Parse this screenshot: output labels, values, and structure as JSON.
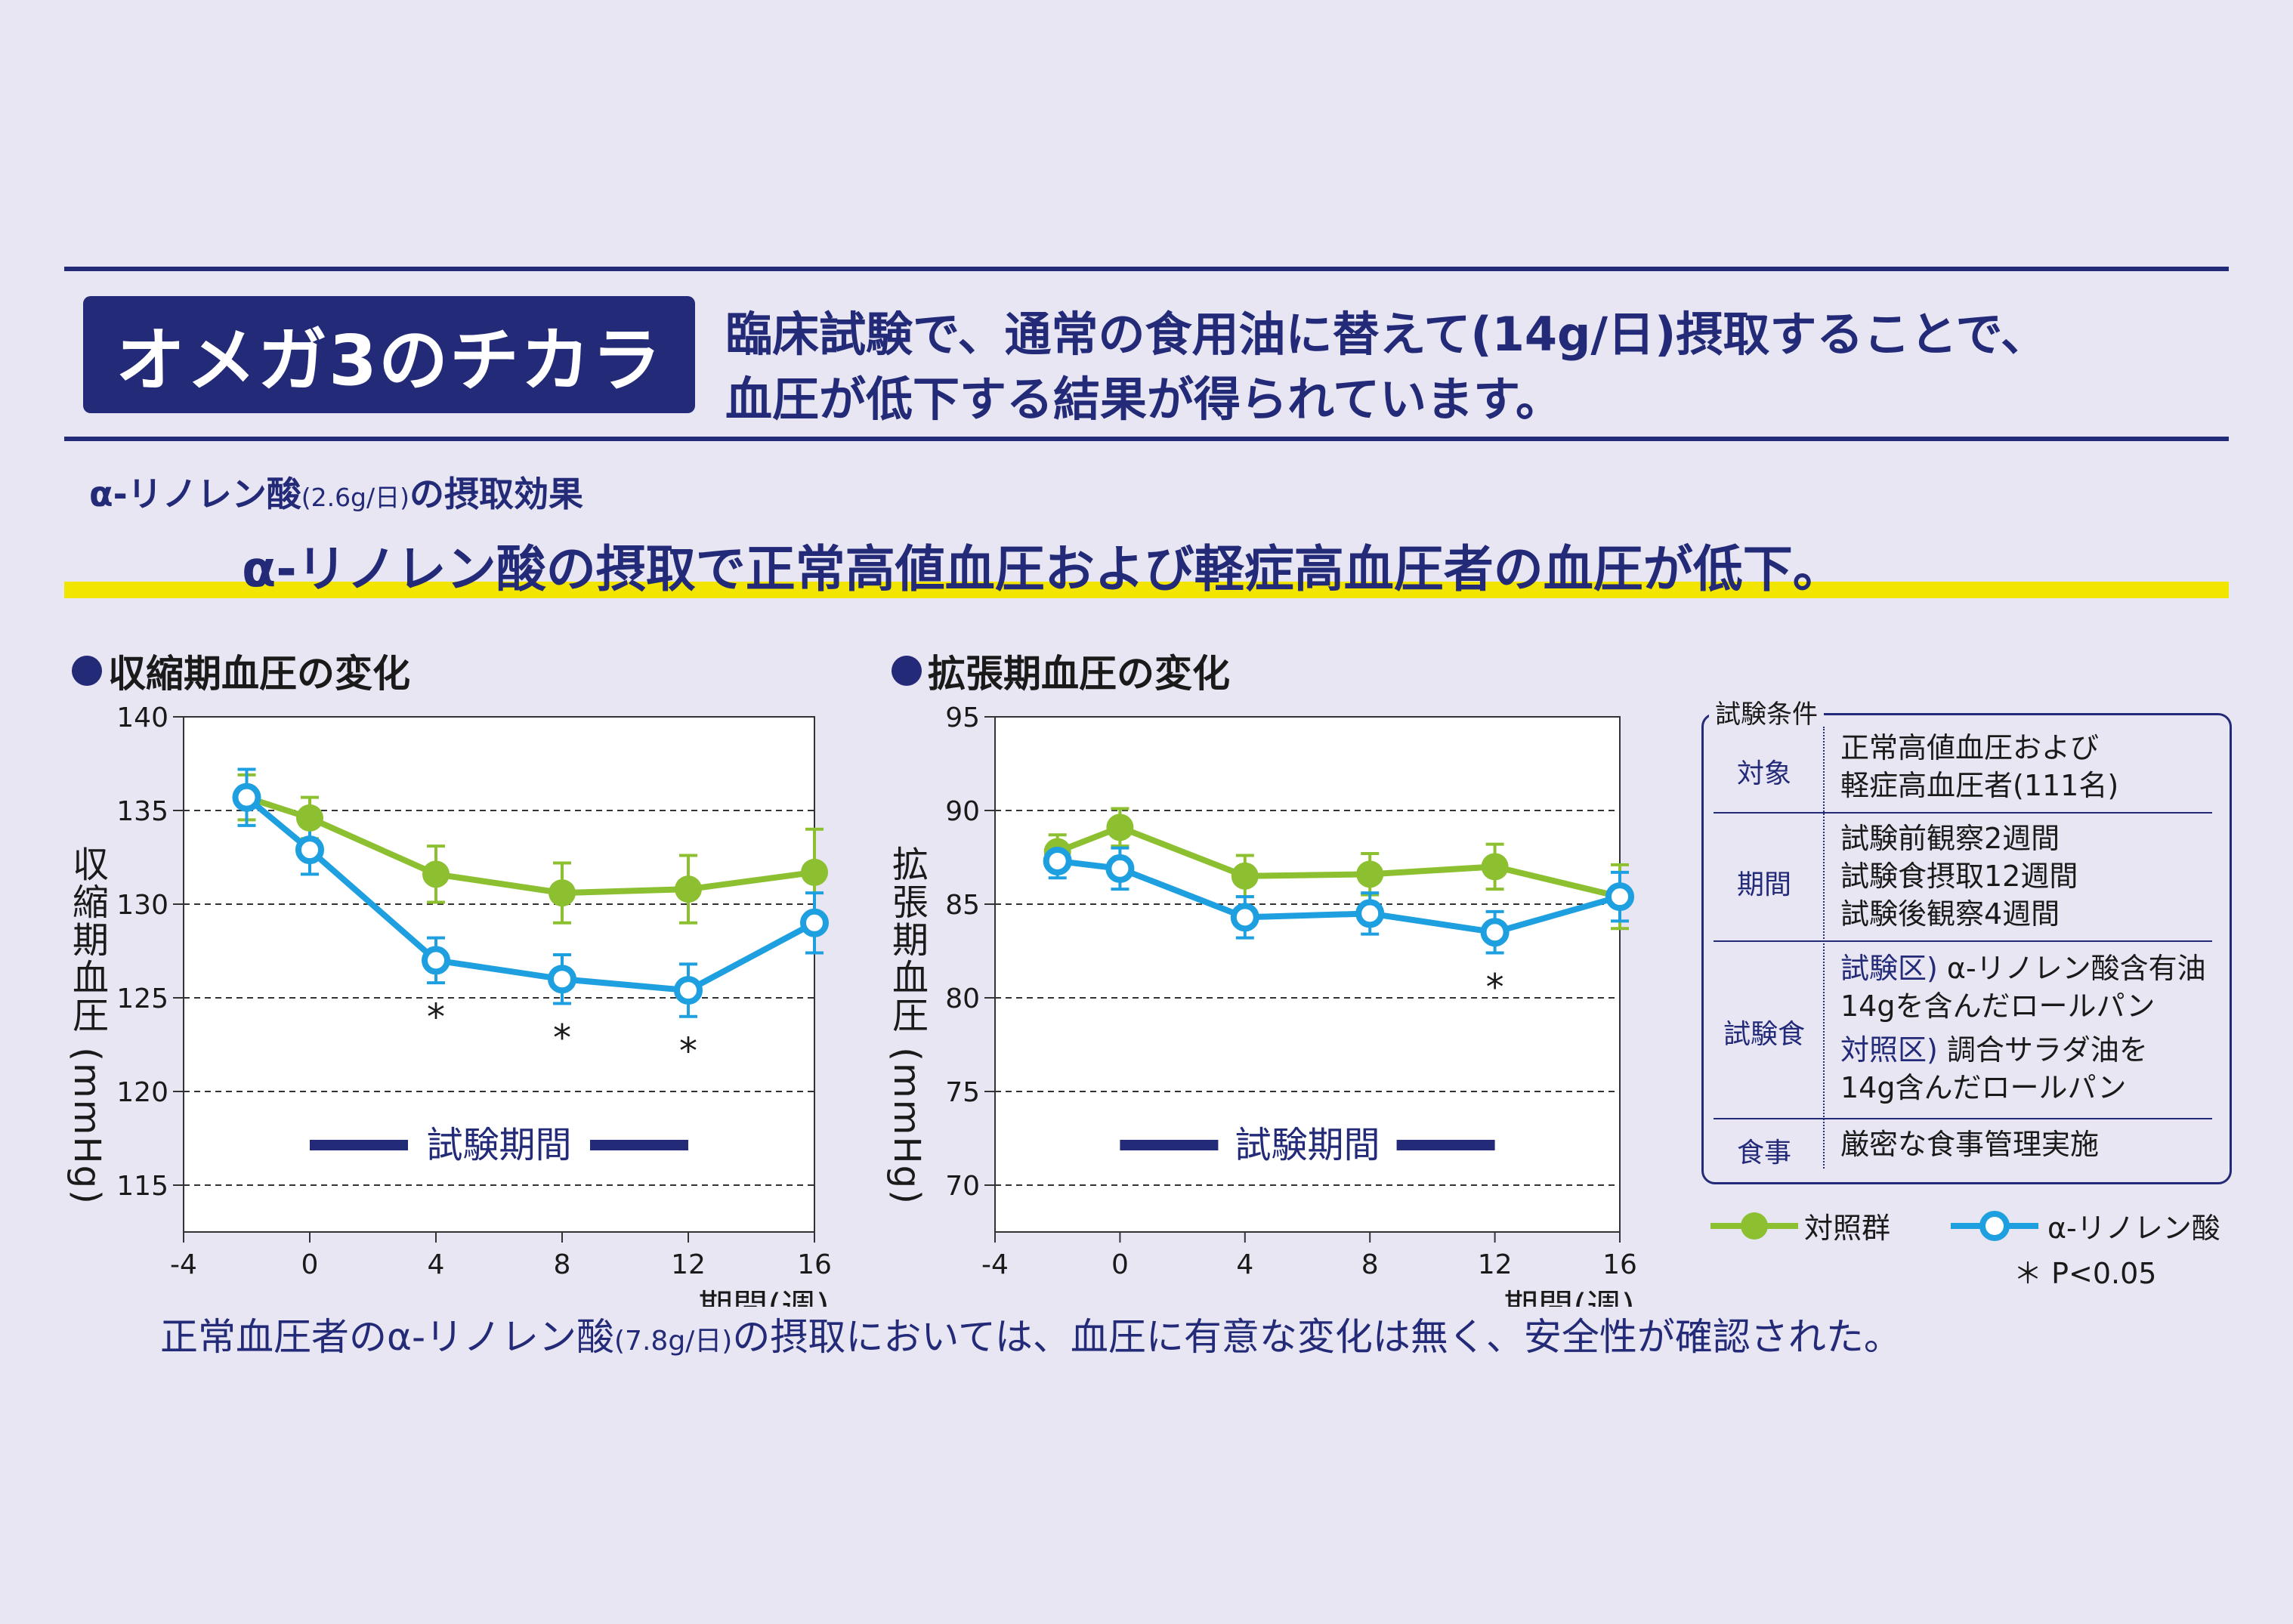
{
  "header": {
    "brand": "オメガ3のチカラ",
    "headline_line1": "臨床試験で、通常の食用油に替えて(14g/日)摂取することで、",
    "headline_line2": "血圧が低下する結果が得られています。"
  },
  "subheading": {
    "main": "α-リノレン酸",
    "dose": "(2.6g/日)",
    "rest": "の摂取効果"
  },
  "highlight": "α-リノレン酸の摂取で正常高値血圧および軽症高血圧者の血圧が低下。",
  "footer": {
    "part1": "正常血圧者のα-リノレン酸",
    "dose": "(7.8g/日)",
    "part2": "の摂取においては、血圧に有意な変化は無く、安全性が確認された。"
  },
  "conditions": {
    "title": "試験条件",
    "rows": [
      {
        "label": "対象",
        "lines": [
          "正常高値血圧および",
          "軽症高血圧者(111名)"
        ]
      },
      {
        "label": "期間",
        "lines": [
          "試験前観察2週間",
          "試験食摂取12週間",
          "試験後観察4週間"
        ]
      },
      {
        "label": "試験食",
        "lines": [
          "α-リノレン酸含有油",
          "14gを含んだロールパン",
          "調合サラダ油を",
          "14g含んだロールパン"
        ],
        "tags": [
          "試験区)",
          "対照区)"
        ]
      },
      {
        "label": "食事",
        "lines": [
          "厳密な食事管理実施"
        ]
      }
    ]
  },
  "legend": {
    "control": "対照群",
    "treatment": "α-リノレン酸",
    "significance": "＊ P<0.05"
  },
  "colors": {
    "navy": "#232a78",
    "control": "#8cc030",
    "treatment": "#1e9fe0",
    "highlight": "#f2e600"
  },
  "chart_data": [
    {
      "type": "line",
      "title": "収縮期血圧の変化",
      "xlabel": "期間(週)",
      "ylabel": "収縮期血圧 (mmHg)",
      "xticks": [
        -4,
        0,
        4,
        8,
        12,
        16
      ],
      "yticks": [
        115,
        120,
        125,
        130,
        135,
        140
      ],
      "xlim": [
        -4,
        16
      ],
      "ylim": [
        112.5,
        140
      ],
      "grid": "horizontal dashed",
      "period_label": "試験期間",
      "period_range": [
        0,
        12
      ],
      "significance_marker": "*",
      "series": [
        {
          "name": "対照群",
          "x": [
            -2,
            0,
            4,
            8,
            12,
            16
          ],
          "y": [
            135.7,
            134.6,
            131.6,
            130.6,
            130.8,
            131.7
          ],
          "err": [
            1.2,
            1.1,
            1.5,
            1.6,
            1.8,
            2.3
          ]
        },
        {
          "name": "α-リノレン酸",
          "x": [
            -2,
            0,
            4,
            8,
            12,
            16
          ],
          "y": [
            135.7,
            132.9,
            127.0,
            126.0,
            125.4,
            129.0
          ],
          "err": [
            1.5,
            1.3,
            1.2,
            1.3,
            1.4,
            1.6
          ],
          "significant": [
            false,
            false,
            true,
            true,
            true,
            false
          ]
        }
      ]
    },
    {
      "type": "line",
      "title": "拡張期血圧の変化",
      "xlabel": "期間(週)",
      "ylabel": "拡張期血圧 (mmHg)",
      "xticks": [
        -4,
        0,
        4,
        8,
        12,
        16
      ],
      "yticks": [
        70,
        75,
        80,
        85,
        90,
        95
      ],
      "xlim": [
        -4,
        16
      ],
      "ylim": [
        67.5,
        95
      ],
      "grid": "horizontal dashed",
      "period_label": "試験期間",
      "period_range": [
        0,
        12
      ],
      "significance_marker": "*",
      "series": [
        {
          "name": "対照群",
          "x": [
            -2,
            0,
            4,
            8,
            12,
            16
          ],
          "y": [
            87.8,
            89.1,
            86.5,
            86.6,
            87.0,
            85.4
          ],
          "err": [
            0.9,
            1.0,
            1.1,
            1.1,
            1.2,
            1.7
          ]
        },
        {
          "name": "α-リノレン酸",
          "x": [
            -2,
            0,
            4,
            8,
            12,
            16
          ],
          "y": [
            87.3,
            86.9,
            84.3,
            84.5,
            83.5,
            85.4
          ],
          "err": [
            0.9,
            1.1,
            1.1,
            1.1,
            1.1,
            1.3
          ],
          "significant": [
            false,
            false,
            false,
            false,
            true,
            false
          ]
        }
      ]
    }
  ]
}
